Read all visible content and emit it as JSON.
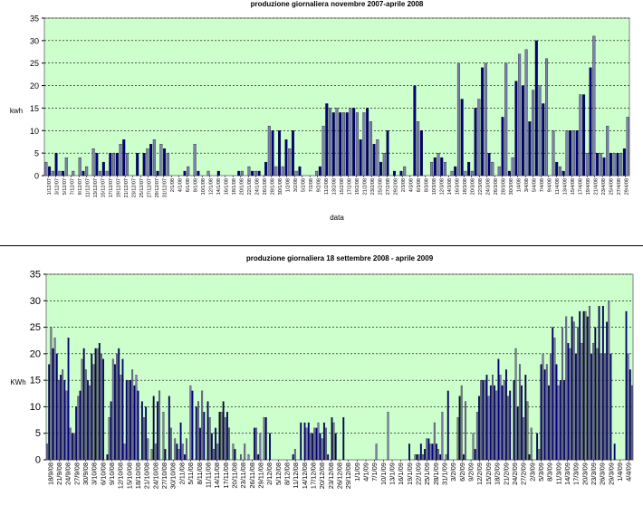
{
  "chart_data": [
    {
      "type": "bar",
      "title": "produzione giornaliera novembre 2007-aprile 2008",
      "ylabel": "kwh",
      "xlabel": "data",
      "ylim": [
        0,
        35
      ],
      "yticks": [
        0,
        5,
        10,
        15,
        20,
        25,
        30,
        35
      ],
      "grid": true,
      "background": "#ccffcc",
      "bar_colors": [
        "#7f7fb2",
        "#000080"
      ],
      "tick_labels": [
        "1/12/07",
        "3/12/07",
        "5/12/07",
        "7/12/07",
        "9/12/07",
        "11/12/07",
        "13/12/07",
        "15/12/07",
        "17/12/07",
        "19/12/07",
        "21/12/07",
        "23/12/07",
        "25/12/07",
        "27/12/07",
        "29/12/07",
        "31/12/07",
        "2/1/08",
        "4/1/08",
        "6/1/08",
        "8/1/08",
        "10/1/08",
        "12/1/08",
        "14/1/08",
        "16/1/08",
        "18/1/08",
        "20/1/08",
        "22/1/08",
        "24/1/08",
        "26/1/08",
        "28/1/08",
        "30/1/08",
        "1/2/08",
        "3/2/08",
        "5/2/08",
        "7/2/08",
        "9/2/08",
        "11/2/08",
        "13/2/08",
        "15/2/08",
        "17/2/08",
        "19/2/08",
        "21/2/08",
        "23/2/08",
        "25/2/08",
        "27/2/08",
        "29/2/08",
        "2/3/08",
        "4/3/08",
        "6/3/08",
        "8/3/08",
        "10/3/08",
        "12/3/08",
        "14/3/08",
        "16/3/08",
        "18/3/08",
        "20/3/08",
        "22/3/08",
        "24/3/08",
        "26/3/08",
        "28/3/08",
        "30/3/08",
        "1/4/08",
        "3/4/08",
        "5/4/08",
        "7/4/08",
        "9/4/08",
        "11/4/08",
        "13/4/08",
        "15/4/08",
        "17/4/08",
        "19/4/08",
        "21/4/08",
        "23/4/08",
        "25/4/08",
        "27/4/08",
        "29/4/08"
      ],
      "values": [
        3,
        2,
        1,
        5,
        1,
        1,
        4,
        0,
        1,
        0,
        4,
        1,
        2,
        0,
        6,
        5,
        1,
        3,
        1,
        5,
        5,
        5,
        7,
        8,
        5,
        0,
        0,
        5,
        0,
        5,
        6,
        7,
        8,
        1,
        7,
        6,
        5,
        0,
        0,
        0,
        0,
        1,
        2,
        0,
        7,
        1,
        0,
        0,
        1,
        0,
        0,
        1,
        0,
        0,
        0,
        0,
        0,
        1,
        1,
        0,
        2,
        1,
        1,
        1,
        0,
        3,
        11,
        10,
        2,
        10,
        2,
        8,
        6,
        10,
        1,
        2,
        0,
        0,
        0,
        0,
        1,
        2,
        11,
        16,
        15,
        14,
        15,
        14,
        14,
        14,
        15,
        15,
        14,
        8,
        14,
        15,
        12,
        7,
        8,
        3,
        5,
        10,
        0,
        1,
        0,
        1,
        2,
        0,
        0,
        20,
        12,
        10,
        0,
        0,
        3,
        4,
        5,
        4,
        3,
        0,
        1,
        2,
        25,
        17,
        1,
        3,
        1,
        15,
        17,
        24,
        25,
        5,
        3,
        0,
        2,
        13,
        25,
        1,
        4,
        21,
        27,
        20,
        28,
        12,
        19,
        30,
        20,
        16,
        26,
        0,
        10,
        3,
        2,
        1,
        10,
        10,
        10,
        10,
        18,
        18,
        5,
        24,
        31,
        5,
        5,
        4,
        11,
        5,
        5,
        5,
        5,
        6,
        13
      ]
    },
    {
      "type": "bar",
      "title": "produzione giornaliera 18 settembre 2008 - aprile 2009",
      "ylabel": "KWh",
      "ylim": [
        0,
        35
      ],
      "yticks": [
        0,
        5,
        10,
        15,
        20,
        25,
        30,
        35
      ],
      "grid": true,
      "background": "#ccffcc",
      "bar_colors": [
        "#7f7fb2",
        "#000080"
      ],
      "tick_labels": [
        "18/9/08",
        "21/9/08",
        "24/9/08",
        "27/9/08",
        "30/9/08",
        "3/10/08",
        "6/10/08",
        "9/10/08",
        "12/10/08",
        "15/10/08",
        "18/10/08",
        "21/10/08",
        "24/10/08",
        "27/10/08",
        "30/10/08",
        "2/11/08",
        "5/11/08",
        "8/11/08",
        "11/11/08",
        "14/11/08",
        "17/11/08",
        "20/11/08",
        "23/11/08",
        "26/11/08",
        "29/11/08",
        "2/12/08",
        "5/12/08",
        "8/12/08",
        "11/12/08",
        "14/12/08",
        "17/12/08",
        "20/12/08",
        "23/12/08",
        "26/12/08",
        "29/12/08",
        "1/1/09",
        "4/1/09",
        "7/1/09",
        "10/1/09",
        "13/1/09",
        "16/1/09",
        "19/1/09",
        "22/1/09",
        "25/1/09",
        "28/1/09",
        "31/1/09",
        "3/2/09",
        "6/2/09",
        "9/2/09",
        "12/2/09",
        "15/2/09",
        "18/2/09",
        "21/2/09",
        "24/2/09",
        "27/2/09",
        "2/3/09",
        "5/3/09",
        "8/3/09",
        "11/3/09",
        "14/3/09",
        "17/3/09",
        "20/3/09",
        "23/3/09",
        "26/3/09",
        "29/3/09",
        "1/4/09",
        "4/4/09"
      ],
      "values": [
        3,
        18,
        25,
        21,
        23,
        20,
        15,
        16,
        17,
        15,
        13,
        23,
        6,
        5,
        5,
        10,
        12,
        13,
        19,
        21,
        17,
        15,
        14,
        20,
        18,
        21,
        21,
        22,
        20,
        19,
        0,
        1,
        8,
        11,
        19,
        18,
        20,
        21,
        16,
        19,
        3,
        15,
        15,
        15,
        17,
        14,
        16,
        13,
        0,
        11,
        8,
        10,
        4,
        0,
        2,
        12,
        3,
        11,
        13,
        0,
        9,
        2,
        0,
        12,
        6,
        0,
        4,
        3,
        2,
        7,
        3,
        1,
        4,
        0,
        14,
        13,
        0,
        10,
        11,
        6,
        13,
        9,
        0,
        11,
        8,
        5,
        2,
        6,
        3,
        9,
        9,
        11,
        8,
        9,
        6,
        0,
        3,
        2,
        0,
        0,
        1,
        0,
        3,
        0,
        1,
        0,
        0,
        6,
        6,
        1,
        5,
        0,
        8,
        8,
        0,
        5,
        0,
        0,
        0,
        0,
        0,
        0,
        0,
        0,
        0,
        0,
        0,
        1,
        2,
        0,
        0,
        7,
        0,
        7,
        6,
        7,
        5,
        5,
        6,
        6,
        7,
        5,
        4,
        7,
        6,
        1,
        0,
        8,
        7,
        5,
        0,
        0,
        0,
        8,
        0,
        0,
        0,
        0,
        0,
        0,
        0,
        0,
        0,
        0,
        0,
        0,
        0,
        0,
        0,
        0,
        3,
        0,
        0,
        0,
        0,
        0,
        9,
        0,
        0,
        0,
        0,
        0,
        0,
        0,
        0,
        0,
        0,
        3,
        0,
        0,
        1,
        1,
        1,
        3,
        1,
        2,
        4,
        4,
        3,
        3,
        7,
        3,
        2,
        1,
        9,
        0,
        1,
        13,
        0,
        0,
        0,
        0,
        8,
        12,
        14,
        1,
        11,
        0,
        0,
        0,
        5,
        2,
        9,
        12,
        15,
        15,
        15,
        16,
        12,
        14,
        16,
        14,
        13,
        19,
        16,
        14,
        15,
        17,
        12,
        13,
        0,
        15,
        21,
        10,
        18,
        14,
        8,
        16,
        11,
        1,
        6,
        0,
        0,
        5,
        2,
        18,
        20,
        17,
        18,
        14,
        20,
        25,
        23,
        18,
        14,
        15,
        25,
        15,
        27,
        22,
        21,
        27,
        26,
        20,
        25,
        28,
        22,
        28,
        28,
        27,
        29,
        20,
        22,
        25,
        21,
        29,
        20,
        29,
        20,
        26,
        30,
        20,
        0,
        3,
        0,
        0,
        0,
        0,
        0,
        28,
        20,
        17,
        14
      ]
    }
  ]
}
